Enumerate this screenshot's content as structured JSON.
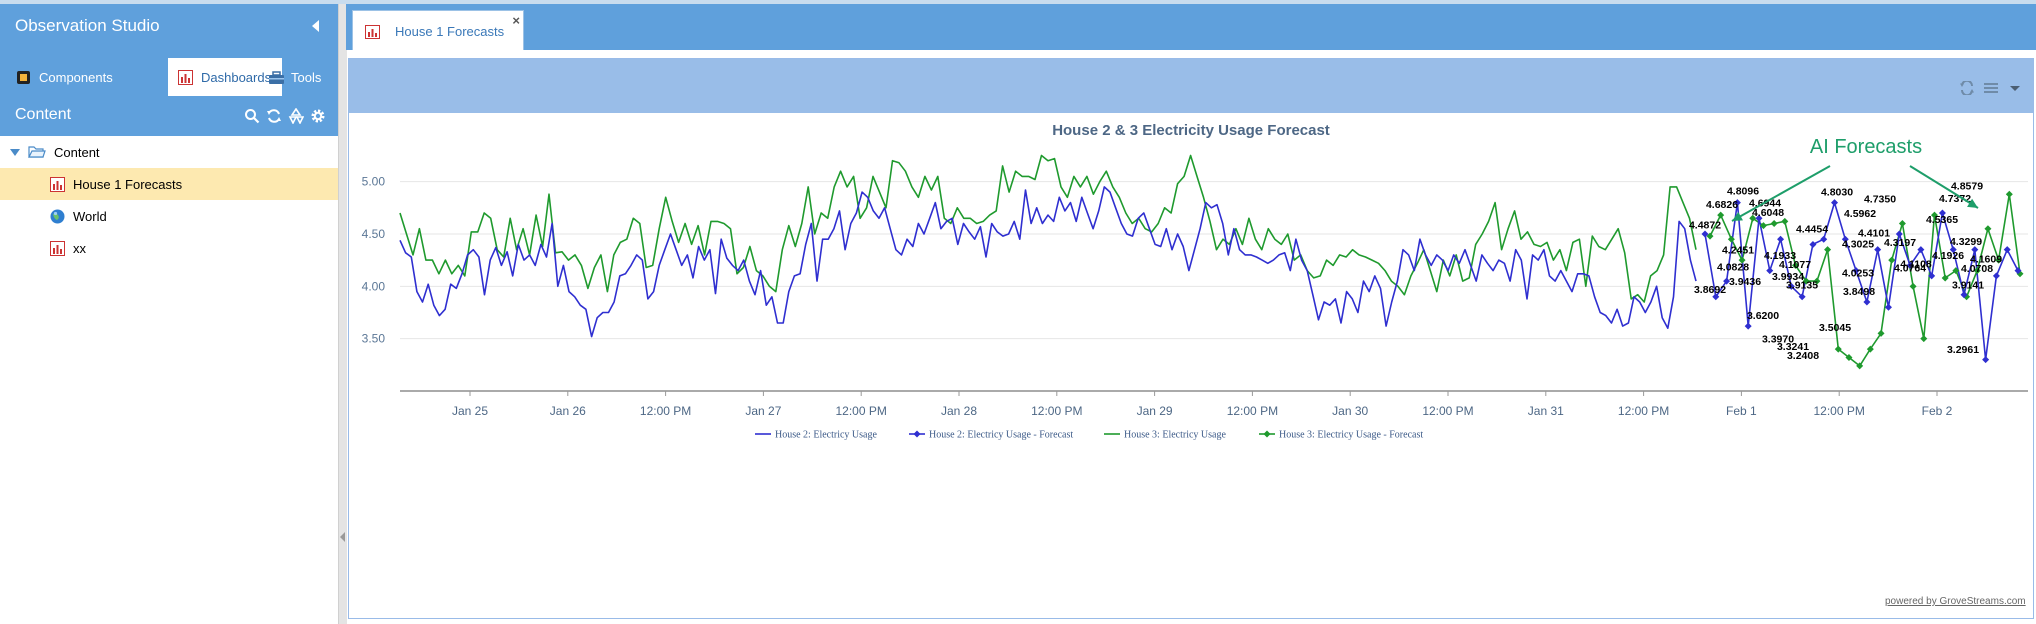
{
  "app": {
    "title": "Observation Studio"
  },
  "left_tabs": [
    {
      "label": "Components",
      "icon": "components-icon"
    },
    {
      "label": "Dashboards",
      "icon": "dashboard-chart-icon"
    },
    {
      "label": "Tools",
      "icon": "toolbox-icon"
    }
  ],
  "content": {
    "title": "Content",
    "tree": [
      {
        "label": "Content",
        "icon": "folder-open-icon",
        "expanded": true
      },
      {
        "label": "House 1 Forecasts",
        "icon": "chart-icon",
        "selected": true
      },
      {
        "label": "World",
        "icon": "globe-icon"
      },
      {
        "label": "xx",
        "icon": "chart-icon"
      }
    ]
  },
  "main_tab": {
    "label": "House 1 Forecasts",
    "close": "×"
  },
  "credit": "powered by GroveStreams.com",
  "colors": {
    "header": "#5fa0dc",
    "panel_header": "#99bde8",
    "house2": "#2f2fd0",
    "house3": "#1f9a2e",
    "annotation": "#1e9e6a"
  },
  "chart_data": {
    "type": "line",
    "title": "House 2 & 3 Electricity Usage Forecast",
    "y_ticks": [
      "3.50",
      "4.00",
      "4.50",
      "5.00"
    ],
    "ylim": [
      3.0,
      5.35
    ],
    "x_ticks": [
      "Jan 25",
      "Jan 26",
      "12:00 PM",
      "Jan 27",
      "12:00 PM",
      "Jan 28",
      "12:00 PM",
      "Jan 29",
      "12:00 PM",
      "Jan 30",
      "12:00 PM",
      "Jan 31",
      "12:00 PM",
      "Feb 1",
      "12:00 PM",
      "Feb 2"
    ],
    "annotation": "AI Forecasts",
    "series": [
      {
        "name": "House 2: Electricy Usage",
        "color": "#2f2fd0",
        "values": [
          4.44,
          4.32,
          4.28,
          3.95,
          3.85,
          4.02,
          3.82,
          3.72,
          3.78,
          4.02,
          3.98,
          4.12,
          4.3,
          4.35,
          4.28,
          3.92,
          4.25,
          4.37,
          4.2,
          4.33,
          4.1,
          4.4,
          4.25,
          4.3,
          4.2,
          4.4,
          4.28,
          4.6,
          4.0,
          4.2,
          3.95,
          3.9,
          3.82,
          3.78,
          3.52,
          3.7,
          3.75,
          3.75,
          3.85,
          4.1,
          4.12,
          4.2,
          4.3,
          4.25,
          3.88,
          3.95,
          4.2,
          4.35,
          4.5,
          4.35,
          4.2,
          4.3,
          4.08,
          4.38,
          4.25,
          4.35,
          3.93,
          4.45,
          4.27,
          4.2,
          4.15,
          4.25,
          4.05,
          3.92,
          4.15,
          3.82,
          3.9,
          3.65,
          3.65,
          3.95,
          4.1,
          4.12,
          4.4,
          4.6,
          4.05,
          4.45,
          4.45,
          4.55,
          4.72,
          4.35,
          4.6,
          4.7,
          4.9,
          4.85,
          4.72,
          4.65,
          4.75,
          4.55,
          4.35,
          4.3,
          4.45,
          4.38,
          4.6,
          4.5,
          4.65,
          4.8,
          4.55,
          4.62,
          4.65,
          4.4,
          4.6,
          4.52,
          4.45,
          4.57,
          4.28,
          4.6,
          4.52,
          4.48,
          4.5,
          4.62,
          4.45,
          4.92,
          4.6,
          4.75,
          4.6,
          4.68,
          4.62,
          4.85,
          4.72,
          4.8,
          4.62,
          4.85,
          4.7,
          4.55,
          4.72,
          4.95,
          4.9,
          4.75,
          4.6,
          4.5,
          4.48,
          4.65,
          4.7,
          4.55,
          4.4,
          4.38,
          4.55,
          4.35,
          4.5,
          4.38,
          4.15,
          4.35,
          4.55,
          4.8,
          4.75,
          4.78,
          4.6,
          4.3,
          4.55,
          4.35,
          4.3,
          4.3,
          4.28,
          4.25,
          4.22,
          4.25,
          4.3,
          4.32,
          4.15,
          4.45,
          4.25,
          4.15,
          3.92,
          3.68,
          3.85,
          3.82,
          3.88,
          3.65,
          3.95,
          3.88,
          3.75,
          4.05,
          3.95,
          4.1,
          3.98,
          3.62,
          3.85,
          4.05,
          4.35,
          4.3,
          4.15,
          4.45,
          4.3,
          4.2,
          4.3,
          4.25,
          4.15,
          4.3,
          4.22,
          4.35,
          4.2,
          4.05,
          4.3,
          4.22,
          4.15,
          4.25,
          4.22,
          4.05,
          4.35,
          4.25,
          3.88,
          4.3,
          4.25,
          4.35,
          4.1,
          4.05,
          4.15,
          4.05,
          3.95,
          4.12,
          4.12,
          4.1,
          3.9,
          3.75,
          3.72,
          3.65,
          3.78,
          3.62,
          3.65,
          3.9,
          3.85,
          3.75,
          3.85,
          4.0,
          3.7,
          3.6,
          3.9,
          4.62,
          4.55,
          4.25,
          4.05
        ]
      },
      {
        "name": "House 2: Electricy Usage - Forecast",
        "color": "#2f2fd0",
        "forecast": true,
        "values": [
          4.5,
          3.9,
          4.05,
          4.8,
          3.62,
          4.65,
          4.15,
          4.45,
          4.0,
          3.9,
          4.4,
          4.45,
          4.8,
          4.45,
          4.15,
          3.85,
          4.35,
          3.8,
          4.5,
          4.2,
          4.35,
          4.1,
          4.7,
          4.35,
          3.92,
          4.35,
          3.3,
          4.1,
          4.35,
          4.15
        ]
      },
      {
        "name": "House 3: Electricy Usage",
        "color": "#1f9a2e",
        "values": [
          4.7,
          4.5,
          4.3,
          4.55,
          4.25,
          4.25,
          4.12,
          4.25,
          4.12,
          4.2,
          4.1,
          4.52,
          4.52,
          4.7,
          4.65,
          4.35,
          4.28,
          4.65,
          4.35,
          4.55,
          4.3,
          4.68,
          4.38,
          4.88,
          4.32,
          4.33,
          4.25,
          4.3,
          4.2,
          3.98,
          4.18,
          4.3,
          3.95,
          4.3,
          4.42,
          4.45,
          4.65,
          4.6,
          4.18,
          4.2,
          4.55,
          4.85,
          4.62,
          4.42,
          4.6,
          4.4,
          4.58,
          4.3,
          4.62,
          4.62,
          4.6,
          4.55,
          4.12,
          4.18,
          4.38,
          4.15,
          4.1,
          4.0,
          3.95,
          4.35,
          4.58,
          4.38,
          4.6,
          4.95,
          4.5,
          4.7,
          4.65,
          4.95,
          5.1,
          4.95,
          5.05,
          4.65,
          4.75,
          5.05,
          4.9,
          4.75,
          5.2,
          5.18,
          5.1,
          4.95,
          4.85,
          5.05,
          4.92,
          5.05,
          4.65,
          4.6,
          4.75,
          4.65,
          4.65,
          4.6,
          4.62,
          4.68,
          4.72,
          5.15,
          4.9,
          5.1,
          5.05,
          5.05,
          5.02,
          5.25,
          5.2,
          5.22,
          4.95,
          4.85,
          5.05,
          4.95,
          5.05,
          4.88,
          5.0,
          5.1,
          4.95,
          4.85,
          4.7,
          4.6,
          4.65,
          4.55,
          4.52,
          4.6,
          4.75,
          4.7,
          4.98,
          5.05,
          5.25,
          5.05,
          4.85,
          4.62,
          4.35,
          4.45,
          4.4,
          4.55,
          4.4,
          4.65,
          4.45,
          4.35,
          4.55,
          4.45,
          4.4,
          4.5,
          4.25,
          4.3,
          4.15,
          4.08,
          4.1,
          4.25,
          4.2,
          4.3,
          4.28,
          4.35,
          4.3,
          4.28,
          4.25,
          4.22,
          4.15,
          4.05,
          4.0,
          3.92,
          4.1,
          4.22,
          4.35,
          4.15,
          3.95,
          4.25,
          4.1,
          4.3,
          4.05,
          4.08,
          4.4,
          4.5,
          4.62,
          4.8,
          4.35,
          4.55,
          4.72,
          4.45,
          4.52,
          4.4,
          4.38,
          4.42,
          4.25,
          4.35,
          4.15,
          4.42,
          4.45,
          4.0,
          4.48,
          4.38,
          4.35,
          4.45,
          4.55,
          4.32,
          3.88,
          3.92,
          3.85,
          4.1,
          4.15,
          4.3,
          4.95,
          4.95,
          4.8,
          4.65,
          4.35
        ]
      },
      {
        "name": "House 3: Electricy Usage - Forecast",
        "color": "#1f9a2e",
        "forecast": true,
        "values": [
          4.48,
          4.68,
          4.45,
          4.25,
          4.65,
          4.58,
          4.6,
          4.62,
          4.2,
          4.05,
          4.05,
          4.35,
          3.4,
          3.32,
          3.24,
          3.4,
          3.55,
          4.25,
          4.6,
          4.0,
          3.5,
          4.68,
          4.08,
          4.15,
          3.9,
          4.15,
          4.55,
          4.25,
          4.88,
          4.12
        ]
      }
    ],
    "forecast_labels": [
      "4.4872",
      "4.6826",
      "4.8096",
      "4.2451",
      "4.6944",
      "4.6048",
      "4.0828",
      "3.9436",
      "4.1933",
      "3.9934",
      "4.1077",
      "4.4454",
      "4.8030",
      "3.9135",
      "4.5962",
      "4.7350",
      "4.4101",
      "4.3025",
      "4.3197",
      "4.0253",
      "4.0764",
      "3.8498",
      "3.8692",
      "3.6200",
      "3.3970",
      "3.3241",
      "3.2408",
      "3.5045",
      "4.5365",
      "4.7372",
      "4.8579",
      "4.1108",
      "4.1926",
      "4.3299",
      "4.1609",
      "4.0708",
      "3.9141",
      "3.2961"
    ]
  }
}
